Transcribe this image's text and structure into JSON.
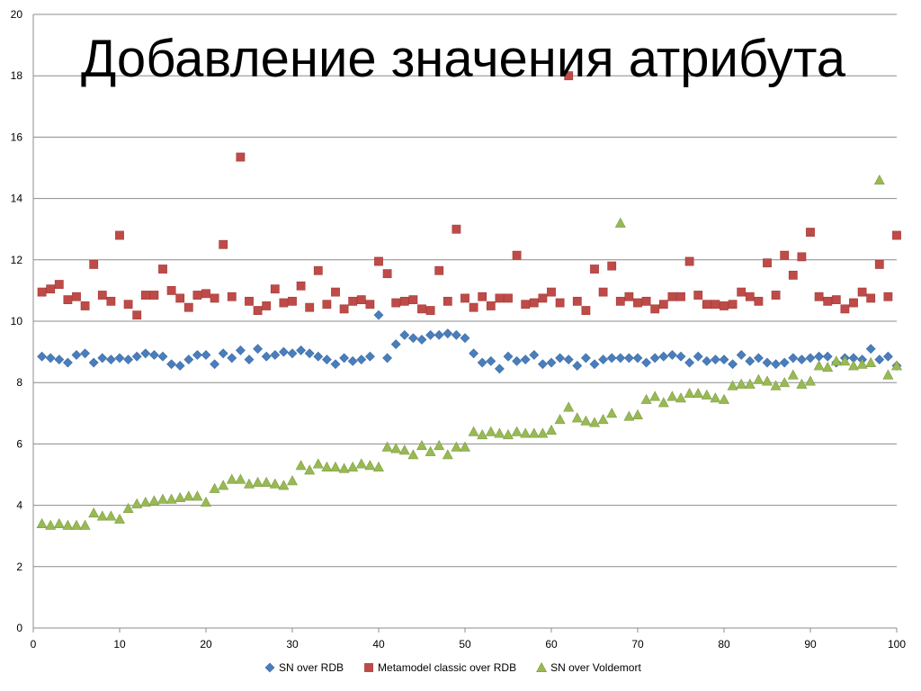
{
  "title": "Добавление значения атрибута",
  "chart_data": {
    "type": "scatter",
    "title": "Добавление значения атрибута",
    "xlabel": "",
    "ylabel": "",
    "xlim": [
      0,
      100
    ],
    "ylim": [
      0,
      20
    ],
    "x_ticks": [
      0,
      10,
      20,
      30,
      40,
      50,
      60,
      70,
      80,
      90,
      100
    ],
    "y_ticks": [
      0,
      2,
      4,
      6,
      8,
      10,
      12,
      14,
      16,
      18,
      20
    ],
    "grid": "horizontal",
    "legend_position": "bottom",
    "x": [
      1,
      2,
      3,
      4,
      5,
      6,
      7,
      8,
      9,
      10,
      11,
      12,
      13,
      14,
      15,
      16,
      17,
      18,
      19,
      20,
      21,
      22,
      23,
      24,
      25,
      26,
      27,
      28,
      29,
      30,
      31,
      32,
      33,
      34,
      35,
      36,
      37,
      38,
      39,
      40,
      41,
      42,
      43,
      44,
      45,
      46,
      47,
      48,
      49,
      50,
      51,
      52,
      53,
      54,
      55,
      56,
      57,
      58,
      59,
      60,
      61,
      62,
      63,
      64,
      65,
      66,
      67,
      68,
      69,
      70,
      71,
      72,
      73,
      74,
      75,
      76,
      77,
      78,
      79,
      80,
      81,
      82,
      83,
      84,
      85,
      86,
      87,
      88,
      89,
      90,
      91,
      92,
      93,
      94,
      95,
      96,
      97,
      98,
      99,
      100
    ],
    "series": [
      {
        "name": "SN over RDB",
        "marker": "diamond",
        "color": "#4a7ebb",
        "values": [
          8.85,
          8.8,
          8.75,
          8.65,
          8.9,
          8.95,
          8.65,
          8.8,
          8.75,
          8.8,
          8.75,
          8.85,
          8.95,
          8.9,
          8.85,
          8.6,
          8.55,
          8.75,
          8.9,
          8.9,
          8.6,
          8.95,
          8.8,
          9.05,
          8.75,
          9.1,
          8.85,
          8.9,
          9.0,
          8.95,
          9.05,
          8.95,
          8.85,
          8.75,
          8.6,
          8.8,
          8.7,
          8.75,
          8.85,
          10.2,
          8.8,
          9.25,
          9.55,
          9.45,
          9.4,
          9.55,
          9.55,
          9.6,
          9.55,
          9.45,
          8.95,
          8.65,
          8.7,
          8.45,
          8.85,
          8.7,
          8.75,
          8.9,
          8.6,
          8.65,
          8.8,
          8.75,
          8.55,
          8.8,
          8.6,
          8.75,
          8.8,
          8.8,
          8.8,
          8.8,
          8.65,
          8.8,
          8.85,
          8.9,
          8.85,
          8.65,
          8.85,
          8.7,
          8.75,
          8.75,
          8.6,
          8.9,
          8.7,
          8.8,
          8.65,
          8.6,
          8.65,
          8.8,
          8.75,
          8.8,
          8.85,
          8.85,
          8.65,
          8.8,
          8.8,
          8.75,
          9.1,
          8.75,
          8.85,
          8.55
        ]
      },
      {
        "name": "Metamodel classic over RDB",
        "marker": "square",
        "color": "#be4b48",
        "values": [
          10.95,
          11.05,
          11.2,
          10.7,
          10.8,
          10.5,
          11.85,
          10.85,
          10.65,
          12.8,
          10.55,
          10.2,
          10.85,
          10.85,
          11.7,
          11.0,
          10.75,
          10.45,
          10.85,
          10.9,
          10.75,
          12.5,
          10.8,
          15.35,
          10.65,
          10.35,
          10.5,
          11.05,
          10.6,
          10.65,
          11.15,
          10.45,
          11.65,
          10.55,
          10.95,
          10.4,
          10.65,
          10.7,
          10.55,
          11.95,
          11.55,
          10.6,
          10.65,
          10.7,
          10.4,
          10.35,
          11.65,
          10.65,
          13.0,
          10.75,
          10.45,
          10.8,
          10.5,
          10.75,
          10.75,
          12.15,
          10.55,
          10.6,
          10.75,
          10.95,
          10.6,
          18.0,
          10.65,
          10.35,
          11.7,
          10.95,
          11.8,
          10.65,
          10.8,
          10.6,
          10.65,
          10.4,
          10.55,
          10.8,
          10.8,
          11.95,
          10.85,
          10.55,
          10.55,
          10.5,
          10.55,
          10.95,
          10.8,
          10.65,
          11.9,
          10.85,
          12.15,
          11.5,
          12.1,
          12.9,
          10.8,
          10.65,
          10.7,
          10.4,
          10.6,
          10.95,
          10.75,
          11.85,
          10.8,
          12.8
        ]
      },
      {
        "name": "SN over Voldemort",
        "marker": "triangle",
        "color": "#98b954",
        "values": [
          3.4,
          3.35,
          3.4,
          3.35,
          3.35,
          3.35,
          3.75,
          3.65,
          3.65,
          3.55,
          3.9,
          4.05,
          4.1,
          4.15,
          4.2,
          4.2,
          4.25,
          4.3,
          4.3,
          4.1,
          4.55,
          4.65,
          4.85,
          4.85,
          4.7,
          4.75,
          4.75,
          4.7,
          4.65,
          4.8,
          5.3,
          5.15,
          5.35,
          5.25,
          5.25,
          5.2,
          5.25,
          5.35,
          5.3,
          5.25,
          5.9,
          5.85,
          5.8,
          5.65,
          5.95,
          5.75,
          5.95,
          5.65,
          5.9,
          5.9,
          6.4,
          6.3,
          6.4,
          6.35,
          6.3,
          6.4,
          6.35,
          6.35,
          6.35,
          6.45,
          6.8,
          7.2,
          6.85,
          6.75,
          6.7,
          6.8,
          7.0,
          13.2,
          6.9,
          6.95,
          7.45,
          7.55,
          7.35,
          7.55,
          7.5,
          7.65,
          7.65,
          7.6,
          7.5,
          7.45,
          7.9,
          7.95,
          7.95,
          8.1,
          8.05,
          7.9,
          8.0,
          8.25,
          7.95,
          8.05,
          8.55,
          8.5,
          8.7,
          8.7,
          8.55,
          8.6,
          8.65,
          14.6,
          8.25,
          8.55
        ]
      }
    ]
  }
}
